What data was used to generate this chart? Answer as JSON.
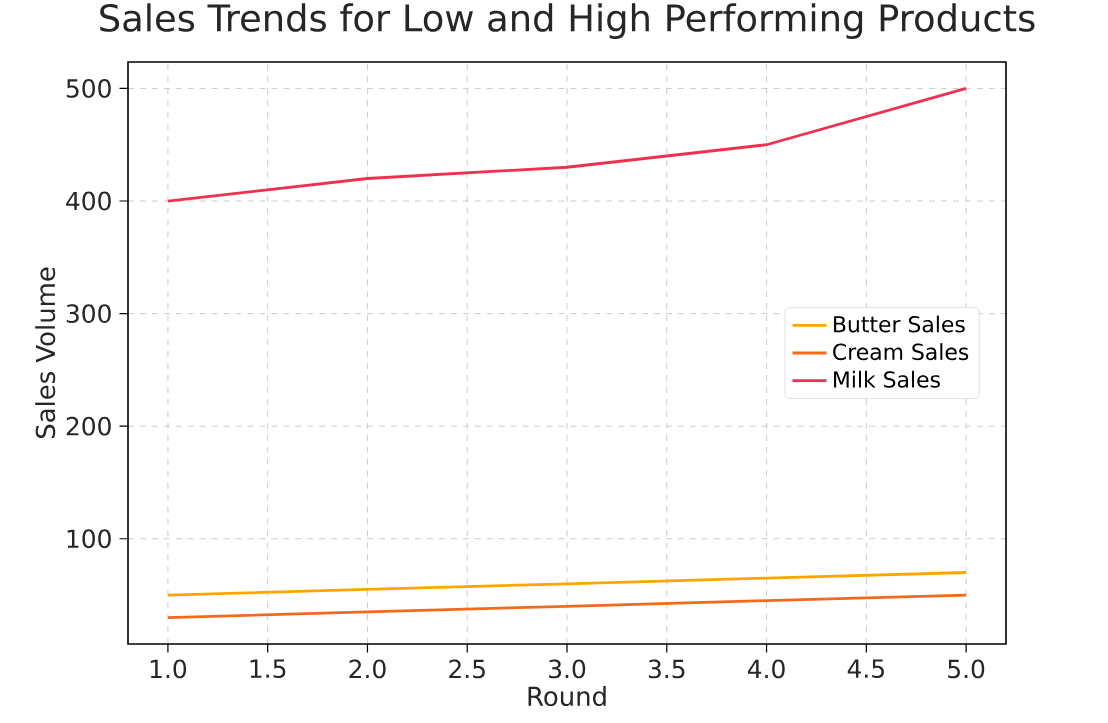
{
  "chart_data": {
    "type": "line",
    "title": "Sales Trends for Low and High Performing Products",
    "xlabel": "Round",
    "ylabel": "Sales Volume",
    "x": [
      1,
      2,
      3,
      4,
      5
    ],
    "series": [
      {
        "name": "Butter Sales",
        "color": "#ffa500",
        "values": [
          50,
          55,
          60,
          65,
          70
        ]
      },
      {
        "name": "Cream Sales",
        "color": "#f26b1d",
        "values": [
          30,
          35,
          40,
          45,
          50
        ]
      },
      {
        "name": "Milk Sales",
        "color": "#f0304f",
        "values": [
          400,
          420,
          430,
          450,
          500
        ]
      }
    ],
    "xlim": [
      0.8,
      5.2
    ],
    "ylim": [
      6.5,
      523.5
    ],
    "xticks": [
      {
        "value": 1,
        "label": "1.0"
      },
      {
        "value": 1.5,
        "label": "1.5"
      },
      {
        "value": 2,
        "label": "2.0"
      },
      {
        "value": 2.5,
        "label": "2.5"
      },
      {
        "value": 3,
        "label": "3.0"
      },
      {
        "value": 3.5,
        "label": "3.5"
      },
      {
        "value": 4,
        "label": "4.0"
      },
      {
        "value": 4.5,
        "label": "4.5"
      },
      {
        "value": 5,
        "label": "5.0"
      }
    ],
    "yticks": [
      100,
      200,
      300,
      400,
      500
    ],
    "grid": true,
    "legend": "right",
    "marker": "none",
    "line_style": "solid"
  }
}
